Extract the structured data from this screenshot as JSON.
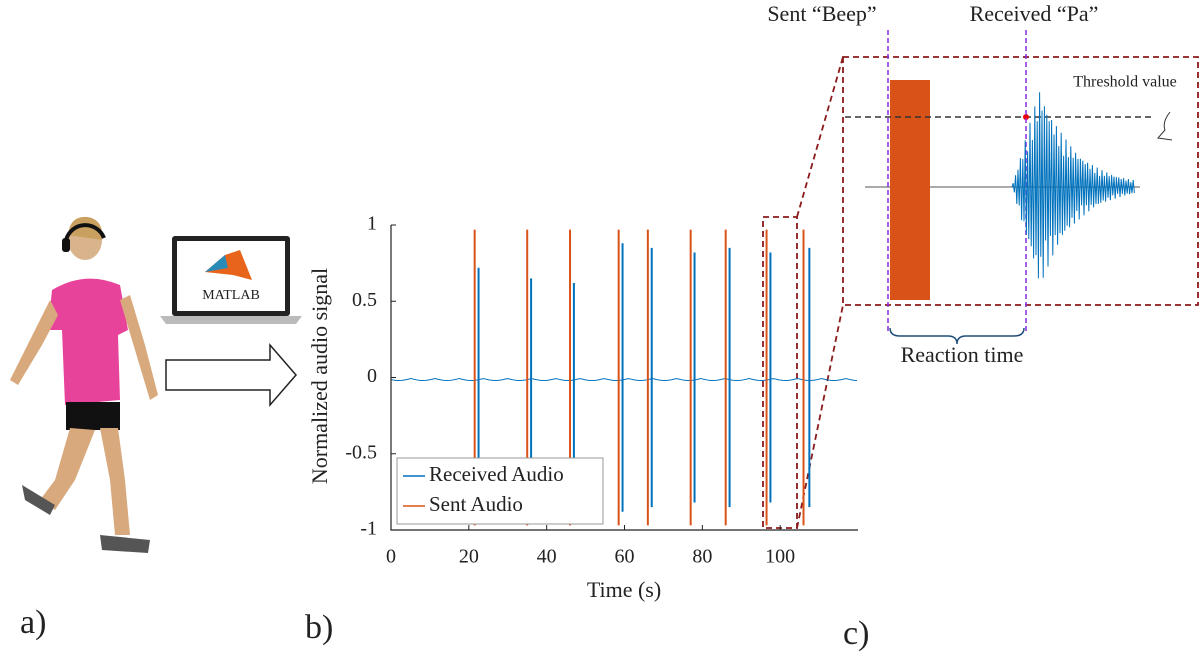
{
  "chart_data": {
    "type": "spike",
    "y_label": "Normalized audio signal",
    "x_label": "Time (s)",
    "xlim": [
      0,
      120
    ],
    "xticks": [
      0,
      20,
      40,
      60,
      80,
      100
    ],
    "ylim": [
      -1,
      1
    ],
    "yticks": [
      -1,
      -0.5,
      0,
      0.5,
      1
    ],
    "legend": "lower left",
    "series": [
      {
        "name": "Received Audio",
        "color": "#0072bd",
        "x": [
          22.5,
          36,
          47,
          59.5,
          67,
          78,
          87,
          97.5,
          107.5
        ],
        "values": [
          0.72,
          0.65,
          0.62,
          0.88,
          0.85,
          0.82,
          0.85,
          0.82,
          0.85
        ]
      },
      {
        "name": "Sent Audio",
        "color": "#d95319",
        "x": [
          21.5,
          35,
          46,
          58.5,
          66,
          77,
          86,
          96.5,
          106
        ],
        "values": [
          0.97,
          0.97,
          0.97,
          0.97,
          0.97,
          0.97,
          0.97,
          0.97,
          0.97
        ]
      }
    ]
  },
  "panel_labels": [
    "a)",
    "b)",
    "c)"
  ],
  "laptop_label": "MATLAB",
  "inset": {
    "sent_label": "Sent “Beep”",
    "received_label": "Received “Pa”",
    "threshold_label": "Threshold value",
    "reaction_label": "Reaction time"
  }
}
